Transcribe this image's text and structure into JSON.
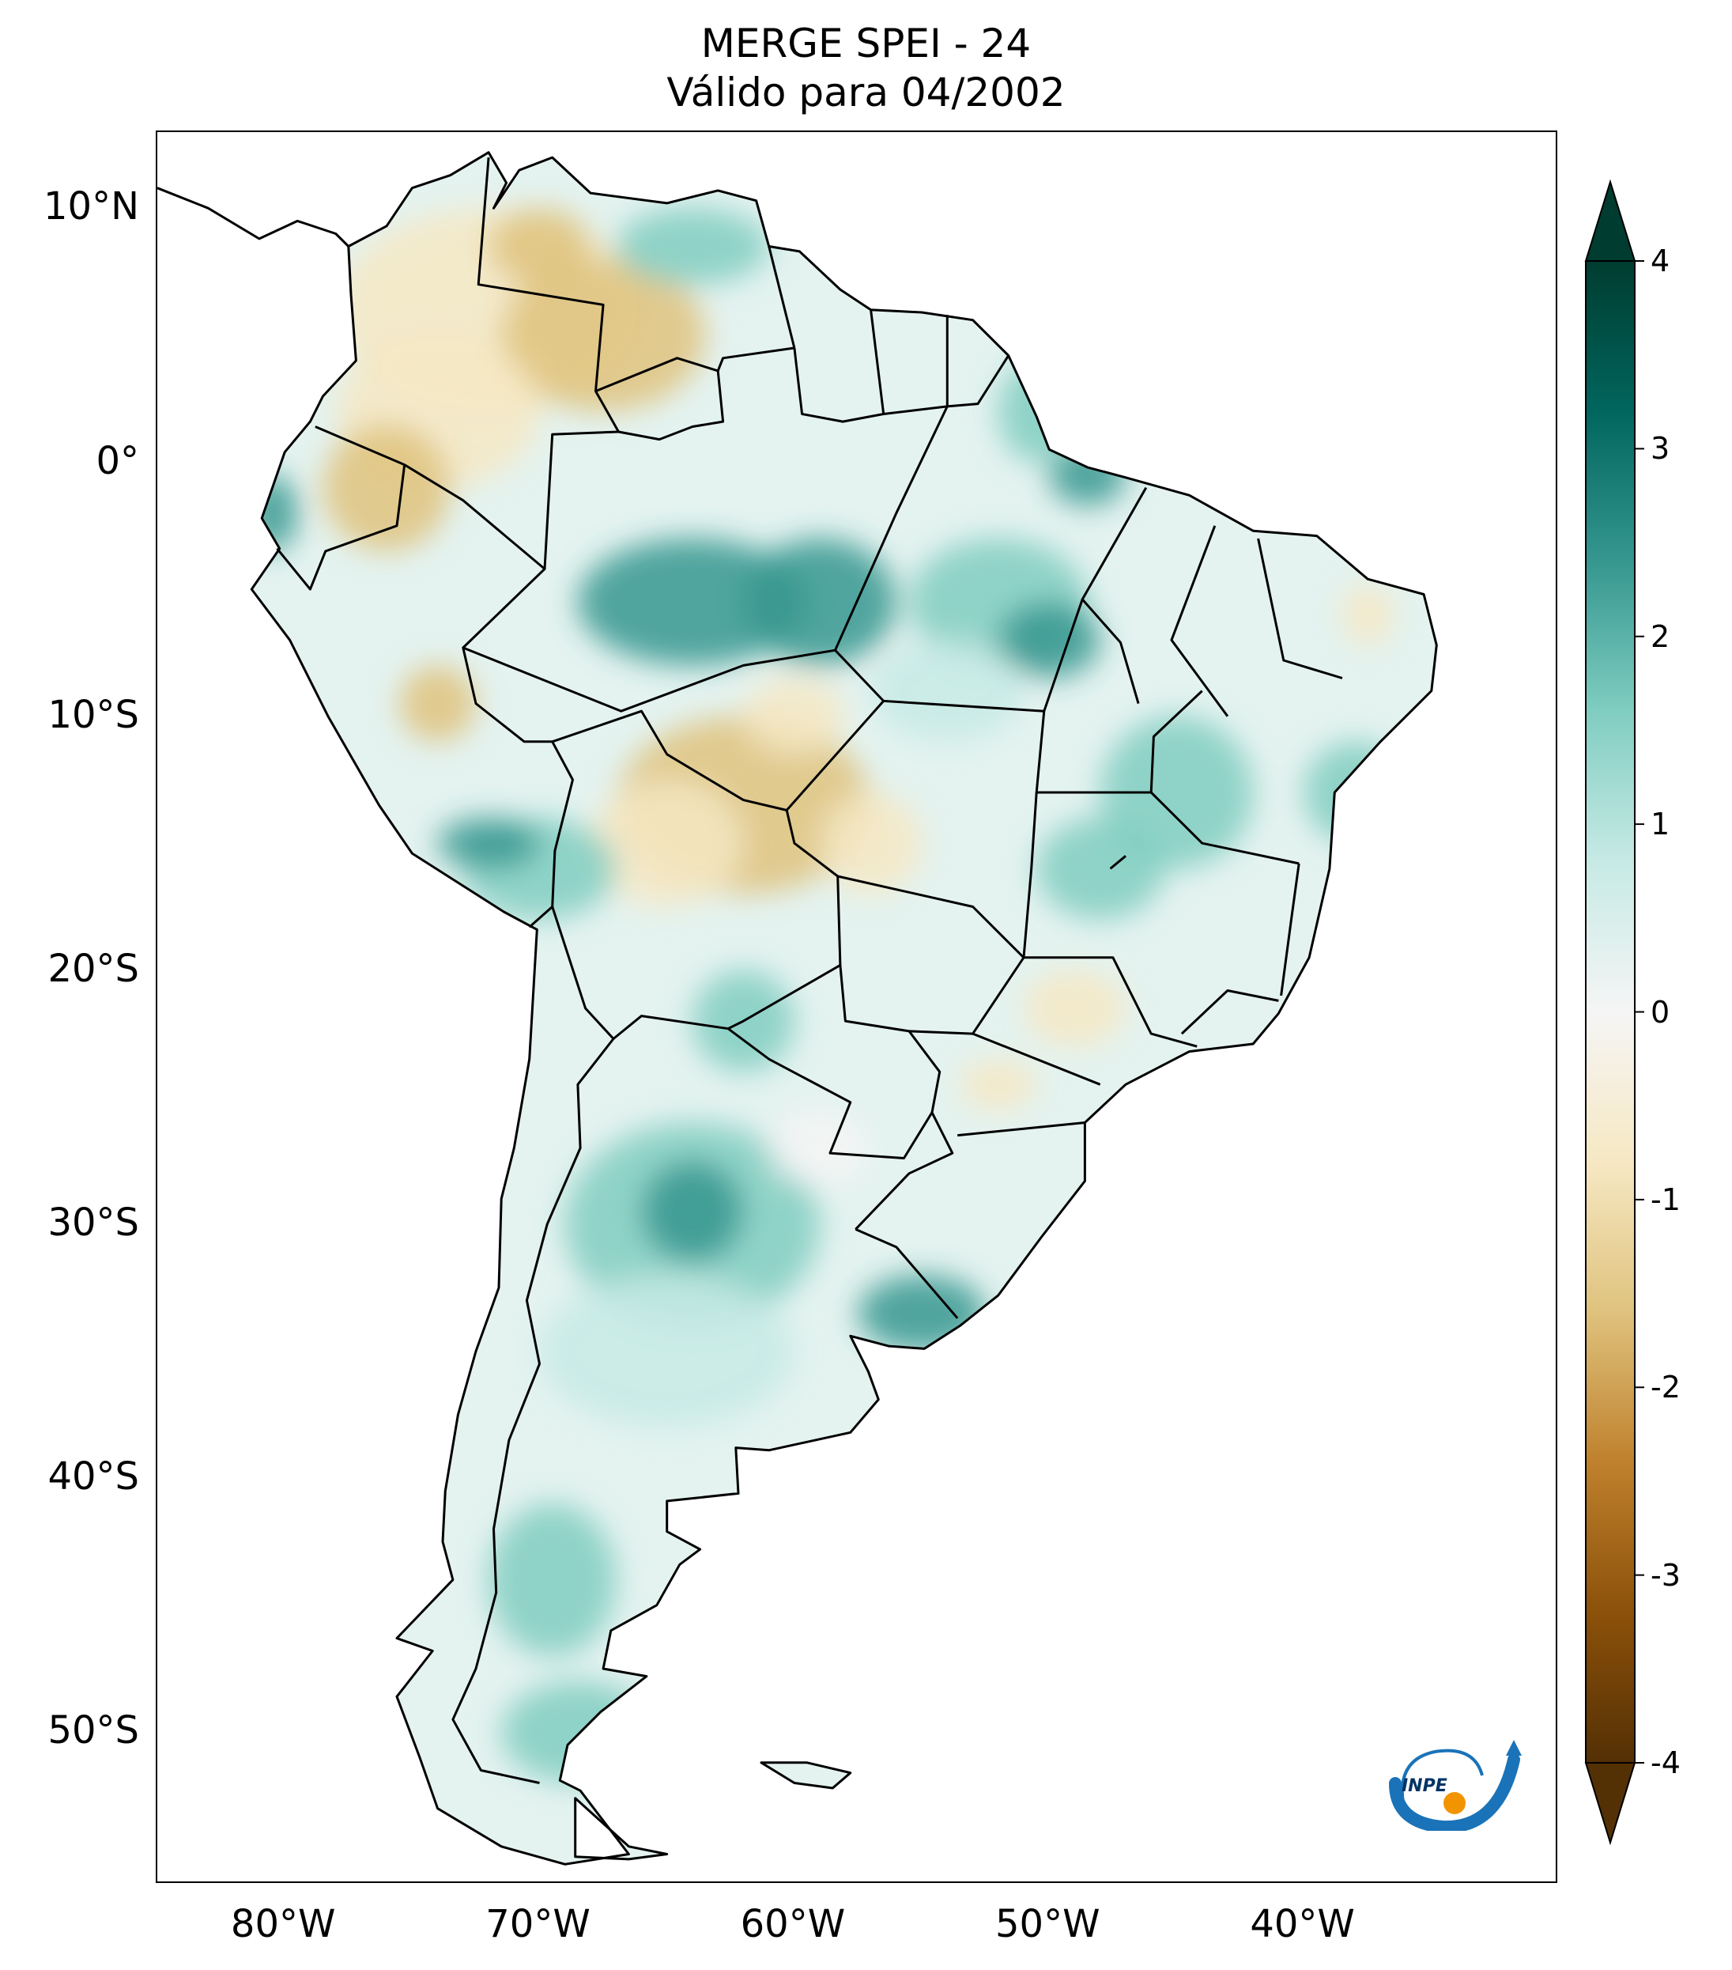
{
  "title": {
    "line1": "MERGE   SPEI - 24",
    "line2": "Válido para 04/2002"
  },
  "map": {
    "lon_range": [
      -85,
      -30
    ],
    "lat_range": [
      -56,
      13
    ],
    "lat_ticks": [
      {
        "value": 10,
        "label": "10°N"
      },
      {
        "value": 0,
        "label": "0°"
      },
      {
        "value": -10,
        "label": "10°S"
      },
      {
        "value": -20,
        "label": "20°S"
      },
      {
        "value": -30,
        "label": "30°S"
      },
      {
        "value": -40,
        "label": "40°S"
      },
      {
        "value": -50,
        "label": "50°S"
      }
    ],
    "lon_ticks": [
      {
        "value": -80,
        "label": "80°W"
      },
      {
        "value": -70,
        "label": "70°W"
      },
      {
        "value": -60,
        "label": "60°W"
      },
      {
        "value": -50,
        "label": "50°W"
      },
      {
        "value": -40,
        "label": "40°W"
      }
    ]
  },
  "colorbar": {
    "min": -4,
    "max": 4,
    "extend": "both",
    "ticks": [
      {
        "value": 4,
        "label": "4"
      },
      {
        "value": 3,
        "label": "3"
      },
      {
        "value": 2,
        "label": "2"
      },
      {
        "value": 1,
        "label": "1"
      },
      {
        "value": 0,
        "label": "0"
      },
      {
        "value": -1,
        "label": "-1"
      },
      {
        "value": -2,
        "label": "-2"
      },
      {
        "value": -3,
        "label": "-3"
      },
      {
        "value": -4,
        "label": "-4"
      }
    ],
    "colors": {
      "dry_extreme": "#543005",
      "dry_strong": "#8c510a",
      "dry_moderate": "#bf812d",
      "dry_mild": "#dfc27d",
      "dry_light": "#f6e8c3",
      "neutral": "#f5f5f5",
      "wet_light": "#c7eae5",
      "wet_mild": "#80cdc1",
      "wet_moderate": "#35978f",
      "wet_strong": "#01665e",
      "wet_extreme": "#003c30"
    }
  },
  "logo": {
    "text": "INPE",
    "colors": {
      "arc": "#1a73b8",
      "dot": "#f29400"
    }
  }
}
